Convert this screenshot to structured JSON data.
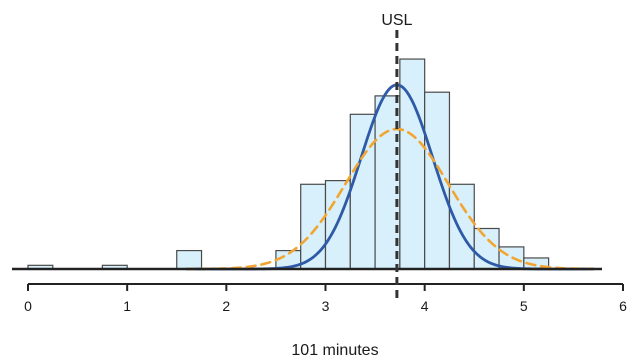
{
  "chart_data": {
    "type": "histogram",
    "title": "",
    "xlabel": "101 minutes",
    "ylabel": "",
    "xlim": [
      0,
      6
    ],
    "xticks": [
      0,
      1,
      2,
      3,
      4,
      5,
      6
    ],
    "xtick_labels": [
      "0",
      "1",
      "2",
      "3",
      "4",
      "5",
      "6"
    ],
    "bins": [
      {
        "x0": 0.0,
        "x1": 0.25,
        "count": 1
      },
      {
        "x0": 0.75,
        "x1": 1.0,
        "count": 1
      },
      {
        "x0": 1.5,
        "x1": 1.75,
        "count": 5
      },
      {
        "x0": 2.5,
        "x1": 2.75,
        "count": 5
      },
      {
        "x0": 2.75,
        "x1": 3.0,
        "count": 23
      },
      {
        "x0": 3.0,
        "x1": 3.25,
        "count": 24
      },
      {
        "x0": 3.25,
        "x1": 3.5,
        "count": 42
      },
      {
        "x0": 3.5,
        "x1": 3.75,
        "count": 47
      },
      {
        "x0": 3.75,
        "x1": 4.0,
        "count": 57
      },
      {
        "x0": 4.0,
        "x1": 4.25,
        "count": 48
      },
      {
        "x0": 4.25,
        "x1": 4.5,
        "count": 23
      },
      {
        "x0": 4.5,
        "x1": 4.75,
        "count": 11
      },
      {
        "x0": 4.75,
        "x1": 5.0,
        "count": 6
      },
      {
        "x0": 5.0,
        "x1": 5.25,
        "count": 3
      }
    ],
    "ylim": [
      0,
      60
    ],
    "curves": [
      {
        "kind": "normal",
        "mean": 3.72,
        "sd": 0.36,
        "peak": 50,
        "color": "#2e5aa8",
        "style": "solid"
      },
      {
        "kind": "normal",
        "mean": 3.72,
        "sd": 0.52,
        "peak": 38,
        "color": "#f2a531",
        "style": "dashed"
      }
    ],
    "reference_line": {
      "label": "USL",
      "x": 3.72,
      "style": "dashed",
      "color": "#333333"
    },
    "colors": {
      "bar_fill": "#d7f0fb",
      "bar_stroke": "#4a4a4a",
      "axis": "#222222"
    },
    "grid": false,
    "legend": "none"
  }
}
